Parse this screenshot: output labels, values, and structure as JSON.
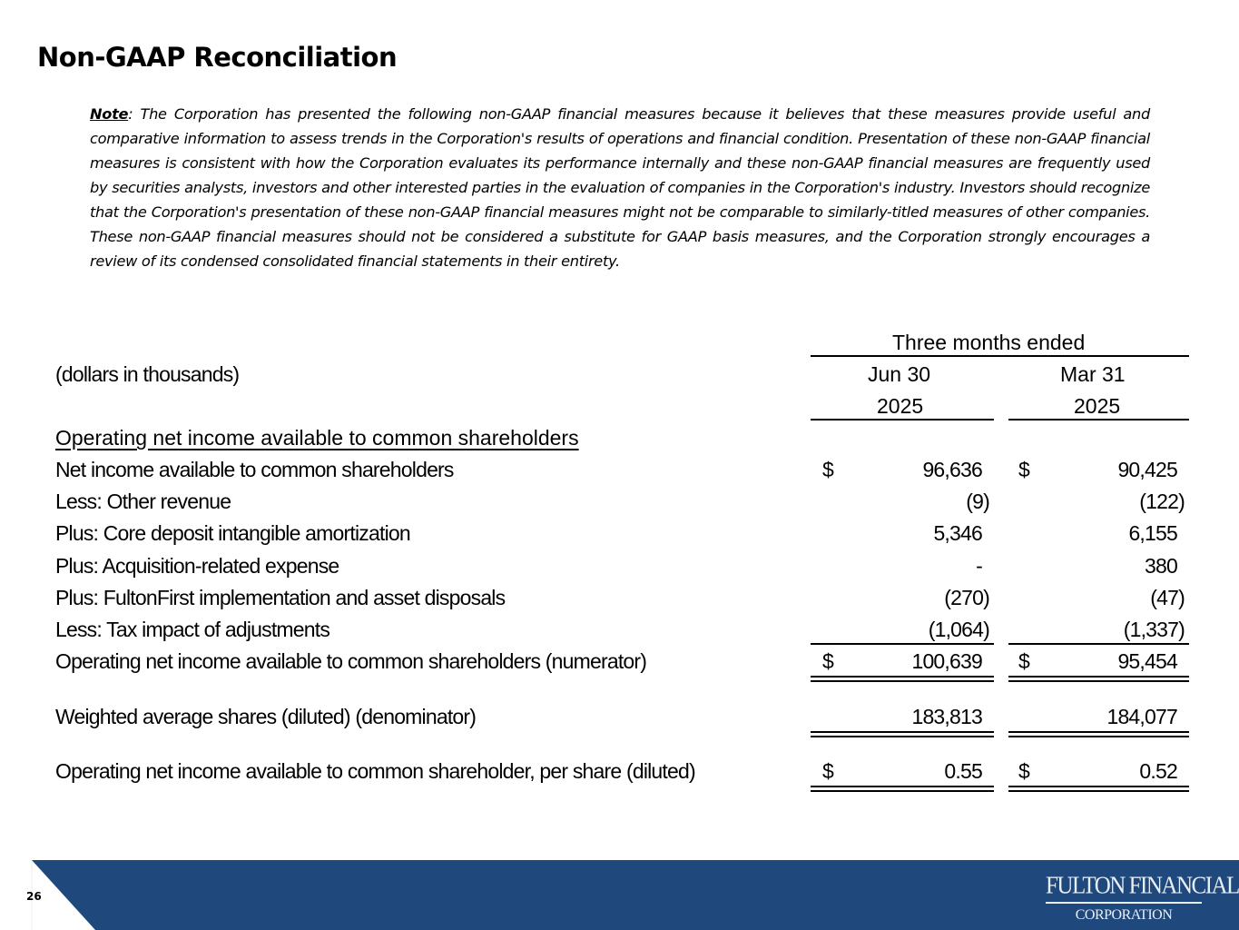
{
  "title": "Non-GAAP Reconciliation",
  "note": {
    "label": "Note",
    "text": ": The Corporation has presented the following non-GAAP financial measures because it believes that these measures provide useful and comparative information to assess trends in the Corporation's results of operations and financial condition. Presentation of these non-GAAP financial measures is consistent with how the Corporation evaluates its performance internally and these non-GAAP financial measures are frequently used by securities analysts, investors and other interested parties in the evaluation of companies in the Corporation's industry. Investors should recognize that the Corporation's presentation of these non-GAAP financial measures might not be comparable to similarly-titled measures of other companies. These non-GAAP financial measures should not be considered a substitute for GAAP basis measures, and the Corporation strongly encourages a review of its condensed consolidated financial statements in their entirety."
  },
  "table": {
    "units": "(dollars in thousands)",
    "period_header": "Three months ended",
    "columns": [
      {
        "month": "Jun 30",
        "year": "2025"
      },
      {
        "month": "Mar 31",
        "year": "2025"
      }
    ],
    "section_title": "Operating net income available to common shareholders",
    "rows": [
      {
        "label": "Net income available to common shareholders",
        "dollar": "$",
        "values": [
          "96,636",
          "90,425"
        ]
      },
      {
        "label": "Less: Other revenue",
        "dollar": "",
        "values": [
          "(9)",
          "(122)"
        ]
      },
      {
        "label": "Plus: Core deposit intangible amortization",
        "dollar": "",
        "values": [
          "5,346",
          "6,155"
        ]
      },
      {
        "label": "Plus: Acquisition-related expense",
        "dollar": "",
        "values": [
          "-",
          "380"
        ]
      },
      {
        "label": "Plus: FultonFirst implementation and asset disposals",
        "dollar": "",
        "values": [
          "(270)",
          "(47)"
        ]
      },
      {
        "label": "Less: Tax impact of adjustments",
        "dollar": "",
        "values": [
          "(1,064)",
          "(1,337)"
        ]
      },
      {
        "label": "Operating net income available to common shareholders (numerator)",
        "dollar": "$",
        "values": [
          "100,639",
          "95,454"
        ]
      },
      {
        "label": "Weighted average shares (diluted) (denominator)",
        "dollar": "",
        "values": [
          "183,813",
          "184,077"
        ]
      },
      {
        "label": "Operating net income available to common shareholder, per share (diluted)",
        "dollar": "$",
        "values": [
          "0.55",
          "0.52"
        ]
      }
    ]
  },
  "footer": {
    "page_number": "26",
    "logo_line1": "FULTON FINANCIAL",
    "logo_line2": "CORPORATION",
    "band_color": "#1f497d"
  }
}
